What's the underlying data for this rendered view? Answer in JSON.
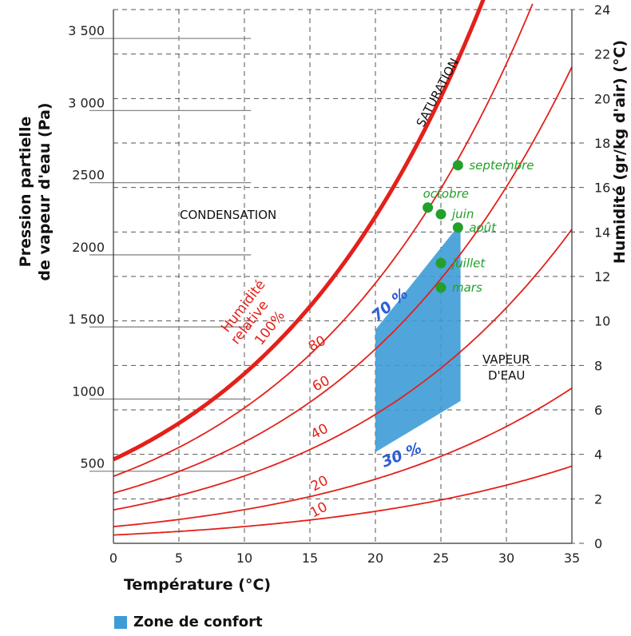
{
  "chart_data": {
    "type": "line",
    "title": "",
    "xlabel": "Température (°C)",
    "ylabel_left": "Pression partielle de vapeur d'eau (Pa)",
    "ylabel_right": "Humidité (gr/kg d'air) (°C)",
    "xlim": [
      0,
      35
    ],
    "ylim_right": [
      0,
      24
    ],
    "x_ticks": [
      "0",
      "5",
      "10",
      "15",
      "20",
      "25",
      "30",
      "35"
    ],
    "y_right_ticks": [
      "0",
      "2",
      "4",
      "6",
      "8",
      "10",
      "12",
      "14",
      "16",
      "18",
      "20",
      "22",
      "24"
    ],
    "y_left_ticks": [
      {
        "label": "500",
        "value": 500
      },
      {
        "label": "1000",
        "value": 1000
      },
      {
        "label": "1 500",
        "value": 1500
      },
      {
        "label": "2000",
        "value": 2000
      },
      {
        "label": "2500",
        "value": 2500
      },
      {
        "label": "3 000",
        "value": 3000
      },
      {
        "label": "3 500",
        "value": 3500
      }
    ],
    "grid": true,
    "series": [
      {
        "name": "Humidité relative 100%",
        "rh": 100,
        "color": "#e4201a"
      },
      {
        "name": "80",
        "rh": 80,
        "color": "#e4201a"
      },
      {
        "name": "60",
        "rh": 60,
        "color": "#e4201a"
      },
      {
        "name": "40",
        "rh": 40,
        "color": "#e4201a"
      },
      {
        "name": "20",
        "rh": 20,
        "color": "#e4201a"
      },
      {
        "name": "10",
        "rh": 10,
        "color": "#e4201a"
      }
    ],
    "points": [
      {
        "label": "septembre",
        "x": 26.3,
        "y": 17.0
      },
      {
        "label": "octobre",
        "x": 24.0,
        "y": 15.1
      },
      {
        "label": "juin",
        "x": 25.0,
        "y": 14.8
      },
      {
        "label": "août",
        "x": 26.3,
        "y": 14.2
      },
      {
        "label": "juillet",
        "x": 25.0,
        "y": 12.6
      },
      {
        "label": "mars",
        "x": 25.0,
        "y": 11.5
      }
    ],
    "comfort_zone": {
      "polygon": [
        [
          20,
          9.6
        ],
        [
          26.5,
          14.4
        ],
        [
          26.5,
          6.4
        ],
        [
          20,
          4.1
        ]
      ],
      "color": "#3d9cd6"
    },
    "annotations": {
      "saturation": "SATURATION",
      "condensation": "CONDENSATION",
      "vapeur": [
        "VAPEUR",
        "D'EAU"
      ],
      "rh100": [
        "Humidité",
        "relative",
        "100%"
      ],
      "pct70": "70 %",
      "pct30": "30 %"
    }
  },
  "legend": {
    "label": "Zone de confort",
    "color": "#3d9cd6"
  }
}
